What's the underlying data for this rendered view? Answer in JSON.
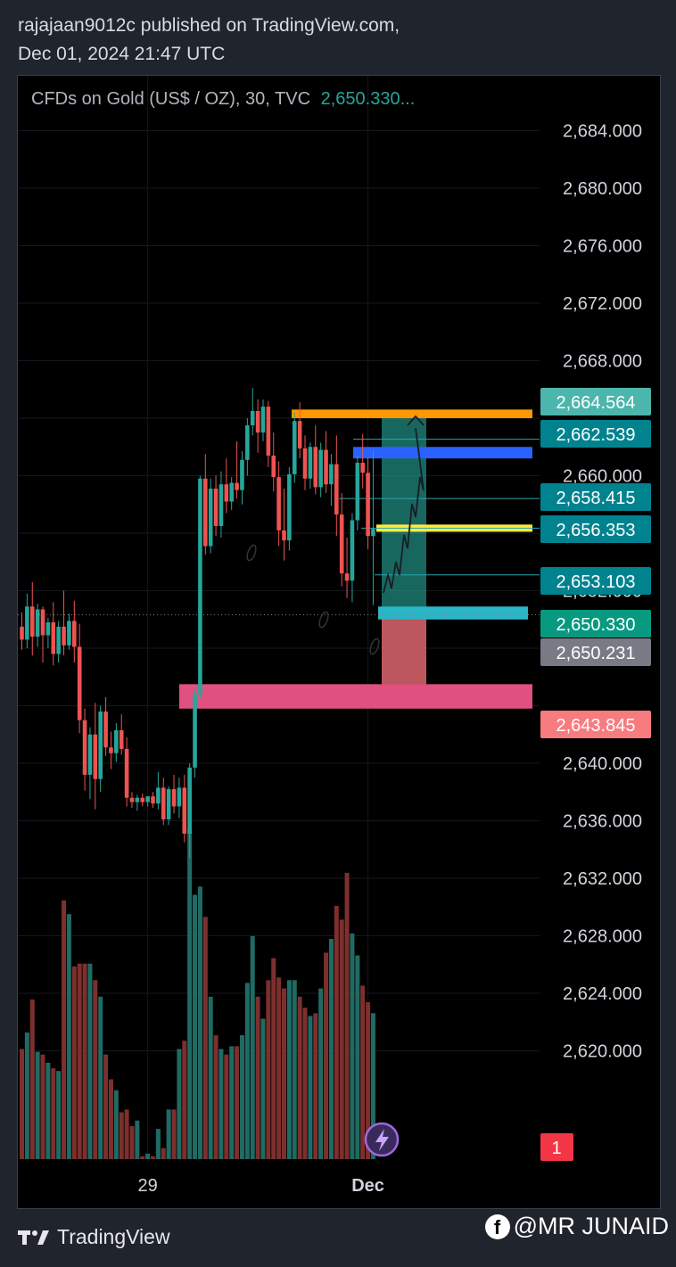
{
  "header": {
    "publisher_line": "rajajaan9012c published on TradingView.com,",
    "date_line": "Dec 01, 2024 21:47 UTC"
  },
  "legend": {
    "symbol": "CFDs on Gold (US$ / OZ), 30, TVC",
    "price": "2,650.330..."
  },
  "footer": {
    "brand": "TradingView",
    "watermark": "@MR JUNAID"
  },
  "chart_data": {
    "type": "candlestick",
    "title": "CFDs on Gold (US$ / OZ), 30, TVC",
    "ylim": [
      2616.5,
      2686.2
    ],
    "y_ticks": [
      2684,
      2680,
      2676,
      2672,
      2668,
      2660,
      2652,
      2640,
      2636,
      2632,
      2628,
      2624,
      2620
    ],
    "x_ticks": [
      {
        "label": "29",
        "index": 24
      },
      {
        "label": "Dec",
        "index": 66
      }
    ],
    "colors": {
      "up": "#26a69a",
      "down": "#ef5350",
      "up_volume": "#1f6b63",
      "down_volume": "#7d2f2d"
    },
    "candles": [
      {
        "o": 2649.5,
        "h": 2650.5,
        "c": 2648.6,
        "l": 2647.9,
        "v": 0.4
      },
      {
        "o": 2648.6,
        "h": 2651.8,
        "c": 2650.9,
        "l": 2648.0,
        "v": 0.46
      },
      {
        "o": 2650.9,
        "h": 2652.6,
        "c": 2648.8,
        "l": 2647.5,
        "v": 0.58
      },
      {
        "o": 2648.8,
        "h": 2651.1,
        "c": 2650.7,
        "l": 2648.1,
        "v": 0.39
      },
      {
        "o": 2650.7,
        "h": 2650.9,
        "c": 2648.9,
        "l": 2647.0,
        "v": 0.38
      },
      {
        "o": 2648.9,
        "h": 2650.1,
        "c": 2649.8,
        "l": 2648.0,
        "v": 0.35
      },
      {
        "o": 2649.8,
        "h": 2651.2,
        "c": 2647.6,
        "l": 2646.8,
        "v": 0.33
      },
      {
        "o": 2647.6,
        "h": 2649.9,
        "c": 2649.5,
        "l": 2647.0,
        "v": 0.32
      },
      {
        "o": 2649.5,
        "h": 2652.0,
        "c": 2648.2,
        "l": 2647.5,
        "v": 0.94
      },
      {
        "o": 2648.2,
        "h": 2650.4,
        "c": 2649.9,
        "l": 2647.9,
        "v": 0.89
      },
      {
        "o": 2649.9,
        "h": 2651.3,
        "c": 2648.1,
        "l": 2647.0,
        "v": 0.7
      },
      {
        "o": 2648.1,
        "h": 2649.7,
        "c": 2643.0,
        "l": 2642.1,
        "v": 0.71
      },
      {
        "o": 2643.0,
        "h": 2643.8,
        "c": 2639.2,
        "l": 2638.1,
        "v": 0.71
      },
      {
        "o": 2639.2,
        "h": 2642.5,
        "c": 2642.0,
        "l": 2637.5,
        "v": 0.71
      },
      {
        "o": 2642.0,
        "h": 2644.2,
        "c": 2638.9,
        "l": 2636.8,
        "v": 0.65
      },
      {
        "o": 2638.9,
        "h": 2644.0,
        "c": 2643.6,
        "l": 2638.0,
        "v": 0.59
      },
      {
        "o": 2643.6,
        "h": 2644.6,
        "c": 2641.1,
        "l": 2640.5,
        "v": 0.38
      },
      {
        "o": 2641.1,
        "h": 2642.2,
        "c": 2640.7,
        "l": 2639.6,
        "v": 0.29
      },
      {
        "o": 2640.7,
        "h": 2642.8,
        "c": 2642.3,
        "l": 2640.1,
        "v": 0.25
      },
      {
        "o": 2642.3,
        "h": 2643.4,
        "c": 2641.0,
        "l": 2640.6,
        "v": 0.17
      },
      {
        "o": 2641.0,
        "h": 2641.8,
        "c": 2637.6,
        "l": 2637.0,
        "v": 0.18
      },
      {
        "o": 2637.6,
        "h": 2638.0,
        "c": 2637.3,
        "l": 2636.9,
        "v": 0.12
      },
      {
        "o": 2637.3,
        "h": 2637.8,
        "c": 2637.6,
        "l": 2636.7,
        "v": 0.14
      },
      {
        "o": 2637.6,
        "h": 2637.9,
        "c": 2637.3,
        "l": 2637.0,
        "v": 0.01
      },
      {
        "o": 2637.3,
        "h": 2637.7,
        "c": 2637.7,
        "l": 2637.0,
        "v": 0.02
      },
      {
        "o": 2637.7,
        "h": 2638.0,
        "c": 2637.2,
        "l": 2636.9,
        "v": 0.01
      },
      {
        "o": 2637.2,
        "h": 2639.4,
        "c": 2638.3,
        "l": 2636.8,
        "v": 0.11
      },
      {
        "o": 2638.3,
        "h": 2639.0,
        "c": 2636.1,
        "l": 2635.7,
        "v": 0.04
      },
      {
        "o": 2636.1,
        "h": 2638.4,
        "c": 2638.2,
        "l": 2635.7,
        "v": 0.18
      },
      {
        "o": 2638.2,
        "h": 2639.2,
        "c": 2637.0,
        "l": 2636.5,
        "v": 0.18
      },
      {
        "o": 2637.0,
        "h": 2639.0,
        "c": 2638.3,
        "l": 2636.2,
        "v": 0.4
      },
      {
        "o": 2638.3,
        "h": 2639.2,
        "c": 2635.1,
        "l": 2634.5,
        "v": 0.43
      },
      {
        "o": 2635.1,
        "h": 2640.0,
        "c": 2639.7,
        "l": 2633.4,
        "v": 1.2
      },
      {
        "o": 2639.7,
        "h": 2645.1,
        "c": 2644.8,
        "l": 2639.0,
        "v": 0.96
      },
      {
        "o": 2644.8,
        "h": 2660.0,
        "c": 2659.8,
        "l": 2644.5,
        "v": 0.99
      },
      {
        "o": 2659.8,
        "h": 2661.5,
        "c": 2655.1,
        "l": 2654.5,
        "v": 0.88
      },
      {
        "o": 2655.1,
        "h": 2659.8,
        "c": 2659.1,
        "l": 2654.6,
        "v": 0.59
      },
      {
        "o": 2659.1,
        "h": 2660.0,
        "c": 2656.5,
        "l": 2655.8,
        "v": 0.45
      },
      {
        "o": 2656.5,
        "h": 2660.3,
        "c": 2659.4,
        "l": 2655.7,
        "v": 0.4
      },
      {
        "o": 2659.4,
        "h": 2661.2,
        "c": 2658.2,
        "l": 2657.4,
        "v": 0.38
      },
      {
        "o": 2658.2,
        "h": 2659.9,
        "c": 2659.5,
        "l": 2657.6,
        "v": 0.41
      },
      {
        "o": 2659.5,
        "h": 2662.4,
        "c": 2659.0,
        "l": 2658.4,
        "v": 0.41
      },
      {
        "o": 2659.0,
        "h": 2661.7,
        "c": 2661.1,
        "l": 2658.0,
        "v": 0.45
      },
      {
        "o": 2661.1,
        "h": 2664.0,
        "c": 2663.5,
        "l": 2660.0,
        "v": 0.64
      },
      {
        "o": 2663.5,
        "h": 2666.1,
        "c": 2664.5,
        "l": 2662.8,
        "v": 0.81
      },
      {
        "o": 2664.5,
        "h": 2665.3,
        "c": 2663.0,
        "l": 2661.6,
        "v": 0.59
      },
      {
        "o": 2663.0,
        "h": 2665.3,
        "c": 2664.8,
        "l": 2662.4,
        "v": 0.51
      },
      {
        "o": 2664.8,
        "h": 2665.2,
        "c": 2661.4,
        "l": 2660.6,
        "v": 0.65
      },
      {
        "o": 2661.4,
        "h": 2663.0,
        "c": 2659.9,
        "l": 2658.9,
        "v": 0.73
      },
      {
        "o": 2659.9,
        "h": 2661.0,
        "c": 2656.2,
        "l": 2655.1,
        "v": 0.66
      },
      {
        "o": 2656.2,
        "h": 2659.1,
        "c": 2655.5,
        "l": 2654.1,
        "v": 0.62
      },
      {
        "o": 2655.5,
        "h": 2660.6,
        "c": 2660.1,
        "l": 2654.8,
        "v": 0.65
      },
      {
        "o": 2660.1,
        "h": 2664.4,
        "c": 2663.8,
        "l": 2659.5,
        "v": 0.65
      },
      {
        "o": 2663.8,
        "h": 2665.1,
        "c": 2661.9,
        "l": 2661.2,
        "v": 0.59
      },
      {
        "o": 2661.9,
        "h": 2662.8,
        "c": 2659.8,
        "l": 2659.0,
        "v": 0.55
      },
      {
        "o": 2659.8,
        "h": 2662.3,
        "c": 2662.0,
        "l": 2659.1,
        "v": 0.52
      },
      {
        "o": 2662.0,
        "h": 2663.5,
        "c": 2659.2,
        "l": 2658.7,
        "v": 0.53
      },
      {
        "o": 2659.2,
        "h": 2662.3,
        "c": 2661.8,
        "l": 2658.5,
        "v": 0.62
      },
      {
        "o": 2661.8,
        "h": 2663.1,
        "c": 2659.4,
        "l": 2658.8,
        "v": 0.75
      },
      {
        "o": 2659.4,
        "h": 2661.5,
        "c": 2660.8,
        "l": 2657.9,
        "v": 0.8
      },
      {
        "o": 2660.8,
        "h": 2662.8,
        "c": 2657.3,
        "l": 2655.8,
        "v": 0.92
      },
      {
        "o": 2657.3,
        "h": 2658.8,
        "c": 2653.2,
        "l": 2652.3,
        "v": 0.87
      },
      {
        "o": 2653.2,
        "h": 2655.7,
        "c": 2652.7,
        "l": 2651.5,
        "v": 1.04
      },
      {
        "o": 2652.7,
        "h": 2657.4,
        "c": 2656.9,
        "l": 2651.2,
        "v": 0.82
      },
      {
        "o": 2656.9,
        "h": 2661.4,
        "c": 2660.9,
        "l": 2656.2,
        "v": 0.74
      },
      {
        "o": 2660.9,
        "h": 2662.9,
        "c": 2660.2,
        "l": 2659.1,
        "v": 0.63
      },
      {
        "o": 2660.2,
        "h": 2661.3,
        "c": 2655.8,
        "l": 2654.9,
        "v": 0.57
      },
      {
        "o": 2655.8,
        "h": 2661.8,
        "c": 2656.3,
        "l": 2651.0,
        "v": 0.53
      }
    ],
    "horizontal_lines": [
      2662.539,
      2658.415,
      2656.353,
      2653.103
    ],
    "zones": [
      {
        "from": 2664.6,
        "to": 2664.0,
        "color": "#ff9800"
      },
      {
        "from": 2662.0,
        "to": 2661.2,
        "color": "#2962ff"
      },
      {
        "from": 2656.6,
        "to": 2656.1,
        "color": "#ffeb3b"
      },
      {
        "from": 2650.9,
        "to": 2650.0,
        "color": "#29b6c8"
      },
      {
        "from": 2645.5,
        "to": 2643.8,
        "color": "#e05080"
      }
    ],
    "position_tool": {
      "entry": 2650.33,
      "target": 2664.564,
      "stop": 2645.0
    },
    "price_labels": [
      {
        "text": "2,664.564",
        "color": "#4db6ac"
      },
      {
        "text": "2,662.539",
        "color": "#00838f"
      },
      {
        "text": "2,658.415",
        "color": "#00838f"
      },
      {
        "text": "2,656.353",
        "color": "#00838f"
      },
      {
        "text": "2,653.103",
        "color": "#00838f"
      },
      {
        "text": "2,650.330",
        "color": "#089981"
      },
      {
        "text": "2,650.231",
        "color": "#787b86"
      },
      {
        "text": "2,643.845",
        "color": "#f77c80"
      }
    ],
    "badge": "1"
  }
}
